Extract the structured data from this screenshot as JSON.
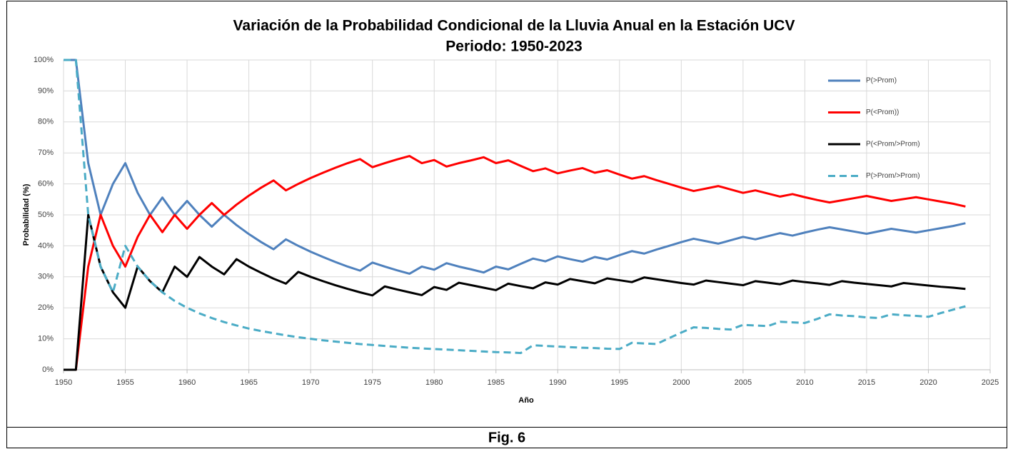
{
  "chart_data": {
    "type": "line",
    "title": "Variación de la Probabilidad Condicional de la Lluvia Anual en la Estación UCV",
    "subtitle": "Periodo: 1950-2023",
    "xlabel": "Año",
    "ylabel": "Probabilidad (%)",
    "caption": "Fig. 6",
    "x": [
      1950,
      1951,
      1952,
      1953,
      1954,
      1955,
      1956,
      1957,
      1958,
      1959,
      1960,
      1961,
      1962,
      1963,
      1964,
      1965,
      1966,
      1967,
      1968,
      1969,
      1970,
      1971,
      1972,
      1973,
      1974,
      1975,
      1976,
      1977,
      1978,
      1979,
      1980,
      1981,
      1982,
      1983,
      1984,
      1985,
      1986,
      1987,
      1988,
      1989,
      1990,
      1991,
      1992,
      1993,
      1994,
      1995,
      1996,
      1997,
      1998,
      1999,
      2000,
      2001,
      2002,
      2003,
      2004,
      2005,
      2006,
      2007,
      2008,
      2009,
      2010,
      2011,
      2012,
      2013,
      2014,
      2015,
      2016,
      2017,
      2018,
      2019,
      2020,
      2021,
      2022,
      2023
    ],
    "series": [
      {
        "name": "P(>Prom)",
        "color": "#4f81bd",
        "line_style": "solid",
        "values": [
          100,
          100,
          66.7,
          50,
          60,
          66.7,
          57.1,
          50,
          55.6,
          50,
          54.5,
          50,
          46.2,
          50,
          46.7,
          43.8,
          41.2,
          38.9,
          42.1,
          40,
          38.1,
          36.4,
          34.8,
          33.3,
          32,
          34.6,
          33.3,
          32.1,
          31,
          33.3,
          32.3,
          34.4,
          33.3,
          32.4,
          31.4,
          33.3,
          32.4,
          34.2,
          35.9,
          35,
          36.6,
          35.7,
          34.9,
          36.4,
          35.6,
          37,
          38.3,
          37.5,
          38.8,
          40,
          41.2,
          42.3,
          41.5,
          40.7,
          41.8,
          42.9,
          42.1,
          43.1,
          44.1,
          43.3,
          44.3,
          45.2,
          46,
          45.3,
          44.6,
          43.9,
          44.7,
          45.5,
          44.9,
          44.3,
          45,
          45.7,
          46.4,
          47.3
        ]
      },
      {
        "name": "P(<Prom))",
        "color": "#ff0000",
        "line_style": "solid",
        "values": [
          0,
          0,
          33.3,
          50,
          40,
          33.3,
          42.9,
          50,
          44.4,
          50,
          45.5,
          50,
          53.8,
          50,
          53.3,
          56.2,
          58.8,
          61.1,
          57.9,
          60,
          61.9,
          63.6,
          65.2,
          66.7,
          68,
          65.4,
          66.7,
          67.9,
          69,
          66.7,
          67.7,
          65.6,
          66.7,
          67.6,
          68.6,
          66.7,
          67.6,
          65.8,
          64.1,
          65,
          63.4,
          64.3,
          65.1,
          63.6,
          64.4,
          63,
          61.7,
          62.5,
          61.2,
          60,
          58.8,
          57.7,
          58.5,
          59.3,
          58.2,
          57.1,
          57.9,
          56.9,
          55.9,
          56.7,
          55.7,
          54.8,
          54,
          54.7,
          55.4,
          56.1,
          55.3,
          54.5,
          55.1,
          55.7,
          55,
          54.3,
          53.6,
          52.7
        ]
      },
      {
        "name": "P(<Prom/>Prom)",
        "color": "#000000",
        "line_style": "solid",
        "values": [
          0,
          0,
          50,
          33.3,
          25,
          20,
          33.3,
          28.6,
          25,
          33.3,
          30,
          36.4,
          33.3,
          30.8,
          35.7,
          33.3,
          31.3,
          29.4,
          27.8,
          31.6,
          30,
          28.6,
          27.3,
          26.1,
          25,
          24,
          26.9,
          25.9,
          25,
          24.1,
          26.7,
          25.8,
          28.1,
          27.3,
          26.5,
          25.7,
          27.8,
          27,
          26.3,
          28.2,
          27.5,
          29.3,
          28.6,
          27.9,
          29.5,
          28.9,
          28.3,
          29.8,
          29.2,
          28.6,
          28,
          27.5,
          28.8,
          28.3,
          27.8,
          27.3,
          28.6,
          28.1,
          27.6,
          28.8,
          28.3,
          27.9,
          27.4,
          28.6,
          28.1,
          27.7,
          27.3,
          26.9,
          28,
          27.6,
          27.2,
          26.8,
          26.5,
          26.1
        ]
      },
      {
        "name": "P(>Prom/>Prom)",
        "color": "#4bacc6",
        "line_style": "dashed",
        "values": [
          100,
          100,
          50,
          33.3,
          25,
          40,
          33.3,
          28.6,
          25,
          22.2,
          20,
          18.2,
          16.7,
          15.4,
          14.3,
          13.3,
          12.5,
          11.8,
          11.1,
          10.5,
          10,
          9.5,
          9.1,
          8.7,
          8.3,
          8,
          7.7,
          7.4,
          7.1,
          6.9,
          6.7,
          6.5,
          6.3,
          6.1,
          5.9,
          5.7,
          5.6,
          5.4,
          7.9,
          7.7,
          7.5,
          7.3,
          7.1,
          7,
          6.8,
          6.7,
          8.7,
          8.5,
          8.3,
          10.2,
          12,
          13.7,
          13.5,
          13.2,
          13,
          14.5,
          14.3,
          14.1,
          15.5,
          15.3,
          15.1,
          16.4,
          17.9,
          17.5,
          17.3,
          16.9,
          16.7,
          17.9,
          17.6,
          17.4,
          17.1,
          18.3,
          19.4,
          20.5
        ]
      }
    ],
    "xlim": [
      1950,
      2025
    ],
    "xticks": [
      1950,
      1955,
      1960,
      1965,
      1970,
      1975,
      1980,
      1985,
      1990,
      1995,
      2000,
      2005,
      2010,
      2015,
      2020,
      2025
    ],
    "ylim": [
      0,
      100
    ],
    "yticks": [
      {
        "value": 0,
        "label": "0%"
      },
      {
        "value": 10,
        "label": "10%"
      },
      {
        "value": 20,
        "label": "20%"
      },
      {
        "value": 30,
        "label": "30%"
      },
      {
        "value": 40,
        "label": "40%"
      },
      {
        "value": 50,
        "label": "50%"
      },
      {
        "value": 60,
        "label": "60%"
      },
      {
        "value": 70,
        "label": "70%"
      },
      {
        "value": 80,
        "label": "80%"
      },
      {
        "value": 90,
        "label": "90%"
      },
      {
        "value": 100,
        "label": "100%"
      }
    ],
    "grid": true,
    "legend": "upper right"
  }
}
